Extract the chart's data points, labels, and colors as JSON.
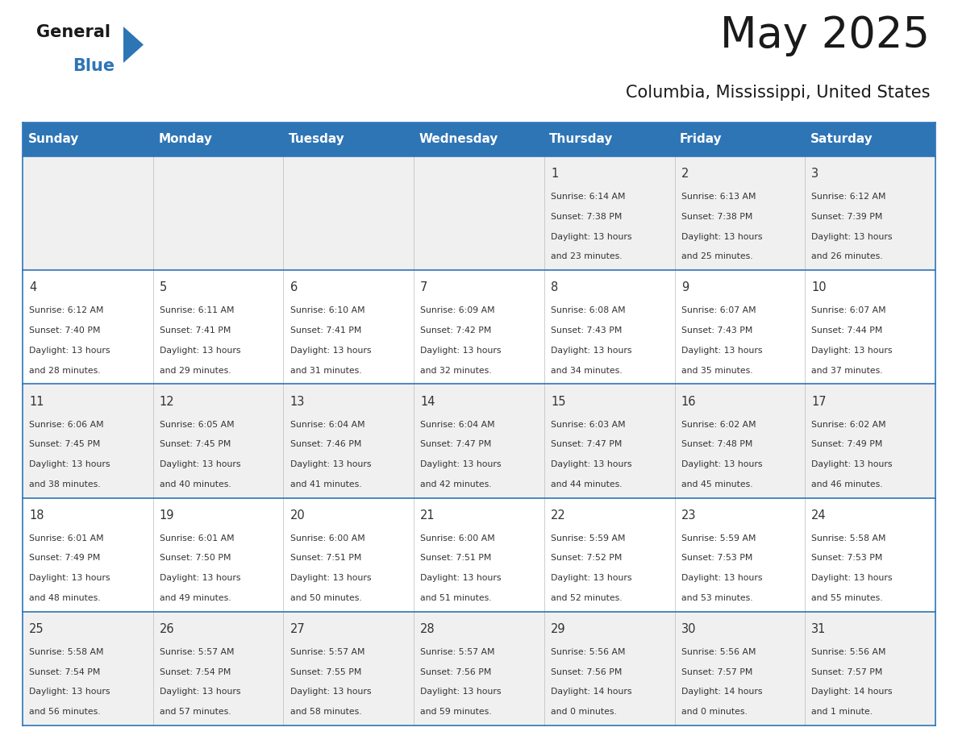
{
  "title": "May 2025",
  "subtitle": "Columbia, Mississippi, United States",
  "header_bg": "#2E75B6",
  "header_text_color": "#FFFFFF",
  "day_names": [
    "Sunday",
    "Monday",
    "Tuesday",
    "Wednesday",
    "Thursday",
    "Friday",
    "Saturday"
  ],
  "row_bg_odd": "#F0F0F0",
  "row_bg_even": "#FFFFFF",
  "cell_text_color": "#333333",
  "day_num_color": "#333333",
  "border_color": "#2E75B6",
  "title_color": "#1a1a1a",
  "subtitle_color": "#1a1a1a",
  "calendar": [
    [
      null,
      null,
      null,
      null,
      {
        "day": 1,
        "sunrise": "6:14 AM",
        "sunset": "7:38 PM",
        "daylight": "13 hours and 23 minutes."
      },
      {
        "day": 2,
        "sunrise": "6:13 AM",
        "sunset": "7:38 PM",
        "daylight": "13 hours and 25 minutes."
      },
      {
        "day": 3,
        "sunrise": "6:12 AM",
        "sunset": "7:39 PM",
        "daylight": "13 hours and 26 minutes."
      }
    ],
    [
      {
        "day": 4,
        "sunrise": "6:12 AM",
        "sunset": "7:40 PM",
        "daylight": "13 hours and 28 minutes."
      },
      {
        "day": 5,
        "sunrise": "6:11 AM",
        "sunset": "7:41 PM",
        "daylight": "13 hours and 29 minutes."
      },
      {
        "day": 6,
        "sunrise": "6:10 AM",
        "sunset": "7:41 PM",
        "daylight": "13 hours and 31 minutes."
      },
      {
        "day": 7,
        "sunrise": "6:09 AM",
        "sunset": "7:42 PM",
        "daylight": "13 hours and 32 minutes."
      },
      {
        "day": 8,
        "sunrise": "6:08 AM",
        "sunset": "7:43 PM",
        "daylight": "13 hours and 34 minutes."
      },
      {
        "day": 9,
        "sunrise": "6:07 AM",
        "sunset": "7:43 PM",
        "daylight": "13 hours and 35 minutes."
      },
      {
        "day": 10,
        "sunrise": "6:07 AM",
        "sunset": "7:44 PM",
        "daylight": "13 hours and 37 minutes."
      }
    ],
    [
      {
        "day": 11,
        "sunrise": "6:06 AM",
        "sunset": "7:45 PM",
        "daylight": "13 hours and 38 minutes."
      },
      {
        "day": 12,
        "sunrise": "6:05 AM",
        "sunset": "7:45 PM",
        "daylight": "13 hours and 40 minutes."
      },
      {
        "day": 13,
        "sunrise": "6:04 AM",
        "sunset": "7:46 PM",
        "daylight": "13 hours and 41 minutes."
      },
      {
        "day": 14,
        "sunrise": "6:04 AM",
        "sunset": "7:47 PM",
        "daylight": "13 hours and 42 minutes."
      },
      {
        "day": 15,
        "sunrise": "6:03 AM",
        "sunset": "7:47 PM",
        "daylight": "13 hours and 44 minutes."
      },
      {
        "day": 16,
        "sunrise": "6:02 AM",
        "sunset": "7:48 PM",
        "daylight": "13 hours and 45 minutes."
      },
      {
        "day": 17,
        "sunrise": "6:02 AM",
        "sunset": "7:49 PM",
        "daylight": "13 hours and 46 minutes."
      }
    ],
    [
      {
        "day": 18,
        "sunrise": "6:01 AM",
        "sunset": "7:49 PM",
        "daylight": "13 hours and 48 minutes."
      },
      {
        "day": 19,
        "sunrise": "6:01 AM",
        "sunset": "7:50 PM",
        "daylight": "13 hours and 49 minutes."
      },
      {
        "day": 20,
        "sunrise": "6:00 AM",
        "sunset": "7:51 PM",
        "daylight": "13 hours and 50 minutes."
      },
      {
        "day": 21,
        "sunrise": "6:00 AM",
        "sunset": "7:51 PM",
        "daylight": "13 hours and 51 minutes."
      },
      {
        "day": 22,
        "sunrise": "5:59 AM",
        "sunset": "7:52 PM",
        "daylight": "13 hours and 52 minutes."
      },
      {
        "day": 23,
        "sunrise": "5:59 AM",
        "sunset": "7:53 PM",
        "daylight": "13 hours and 53 minutes."
      },
      {
        "day": 24,
        "sunrise": "5:58 AM",
        "sunset": "7:53 PM",
        "daylight": "13 hours and 55 minutes."
      }
    ],
    [
      {
        "day": 25,
        "sunrise": "5:58 AM",
        "sunset": "7:54 PM",
        "daylight": "13 hours and 56 minutes."
      },
      {
        "day": 26,
        "sunrise": "5:57 AM",
        "sunset": "7:54 PM",
        "daylight": "13 hours and 57 minutes."
      },
      {
        "day": 27,
        "sunrise": "5:57 AM",
        "sunset": "7:55 PM",
        "daylight": "13 hours and 58 minutes."
      },
      {
        "day": 28,
        "sunrise": "5:57 AM",
        "sunset": "7:56 PM",
        "daylight": "13 hours and 59 minutes."
      },
      {
        "day": 29,
        "sunrise": "5:56 AM",
        "sunset": "7:56 PM",
        "daylight": "14 hours and 0 minutes."
      },
      {
        "day": 30,
        "sunrise": "5:56 AM",
        "sunset": "7:57 PM",
        "daylight": "14 hours and 0 minutes."
      },
      {
        "day": 31,
        "sunrise": "5:56 AM",
        "sunset": "7:57 PM",
        "daylight": "14 hours and 1 minute."
      }
    ]
  ]
}
